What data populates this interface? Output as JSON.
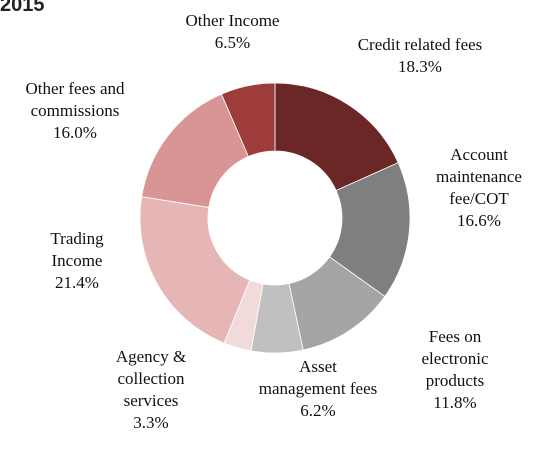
{
  "chart_data": {
    "type": "pie",
    "title": "2015",
    "categories": [
      "Credit related fees",
      "Account maintenance fee/COT",
      "Fees on electronic products",
      "Asset management fees",
      "Agency & collection services",
      "Trading Income",
      "Other fees and commissions",
      "Other Income"
    ],
    "values": [
      18.3,
      16.6,
      11.8,
      6.2,
      3.3,
      21.4,
      16.0,
      6.5
    ],
    "value_labels": [
      "18.3%",
      "16.6%",
      "11.8%",
      "6.2%",
      "3.3%",
      "21.4%",
      "16.0%",
      "6.5%"
    ],
    "colors": [
      "#6b2626",
      "#7f7f7f",
      "#a5a5a5",
      "#c0c0c0",
      "#f2dada",
      "#e6b5b5",
      "#d99595",
      "#9e3c3b"
    ],
    "donut": true
  }
}
